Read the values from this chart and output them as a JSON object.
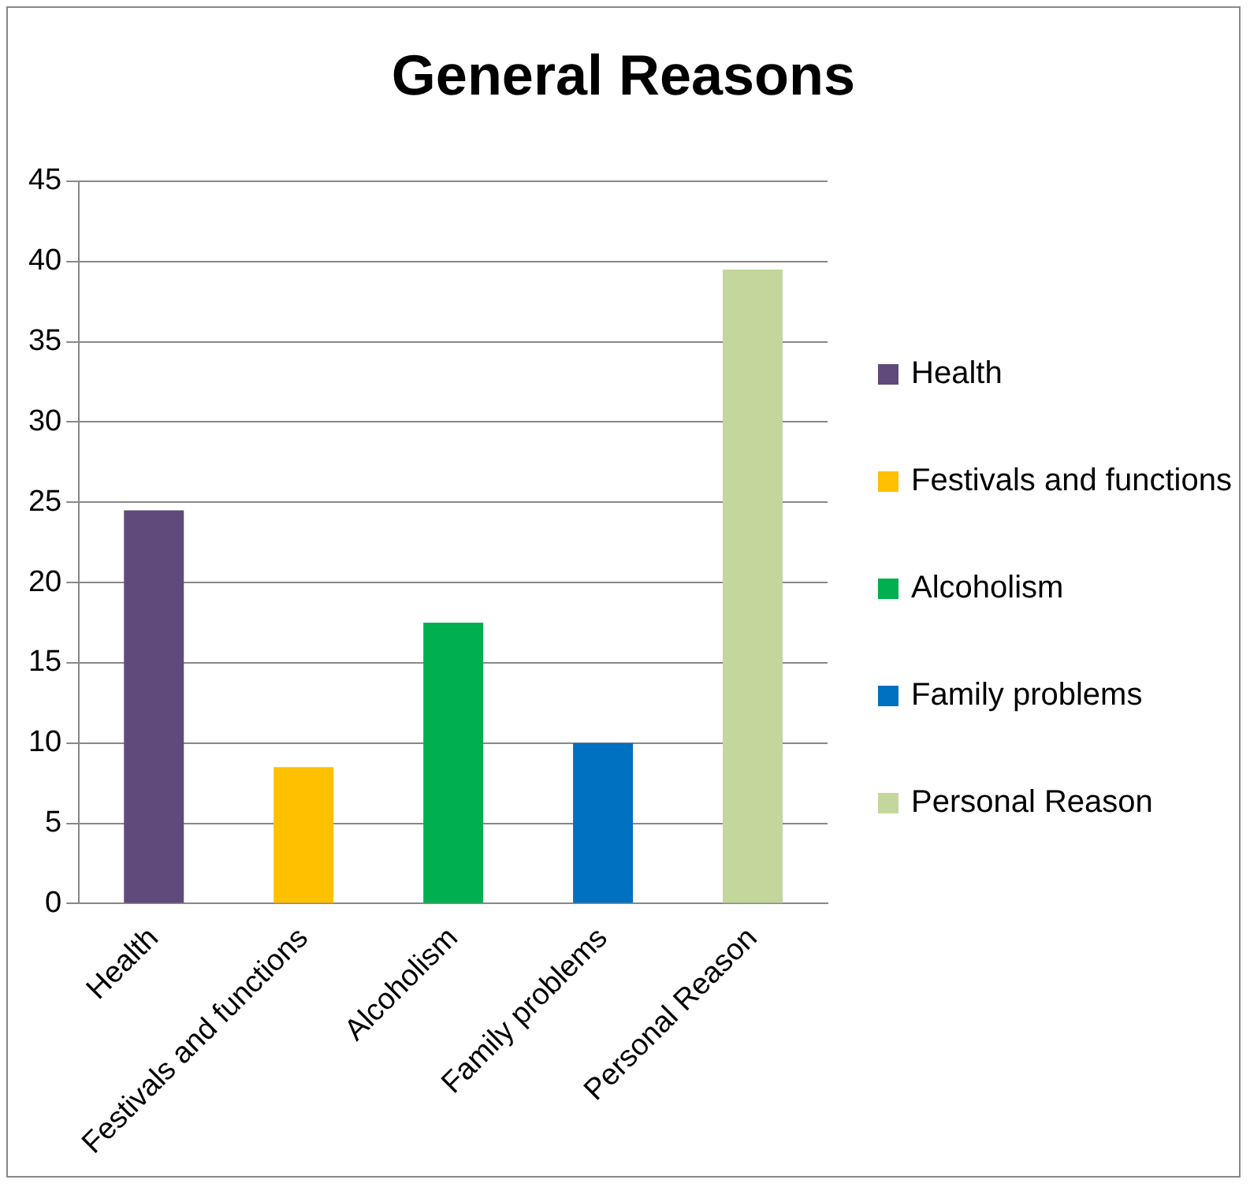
{
  "chart_data": {
    "type": "bar",
    "title": "General Reasons",
    "categories": [
      "Health",
      "Festivals and functions",
      "Alcoholism",
      "Family problems",
      "Personal Reason"
    ],
    "series": [
      {
        "name": "Health",
        "color": "#604a7b",
        "values": [
          24.5,
          null,
          null,
          null,
          null
        ]
      },
      {
        "name": "Festivals and functions",
        "color": "#ffc000",
        "values": [
          null,
          8.5,
          null,
          null,
          null
        ]
      },
      {
        "name": "Alcoholism",
        "color": "#00b050",
        "values": [
          null,
          null,
          17.5,
          null,
          null
        ]
      },
      {
        "name": "Family problems",
        "color": "#0070c0",
        "values": [
          null,
          null,
          null,
          10,
          null
        ]
      },
      {
        "name": "Personal Reason",
        "color": "#c3d69b",
        "values": [
          null,
          null,
          null,
          null,
          39.5
        ]
      }
    ],
    "ylim": [
      0,
      45
    ],
    "yticks": [
      0,
      5,
      10,
      15,
      20,
      25,
      30,
      35,
      40,
      45
    ],
    "grid": "y",
    "legend": "right"
  }
}
